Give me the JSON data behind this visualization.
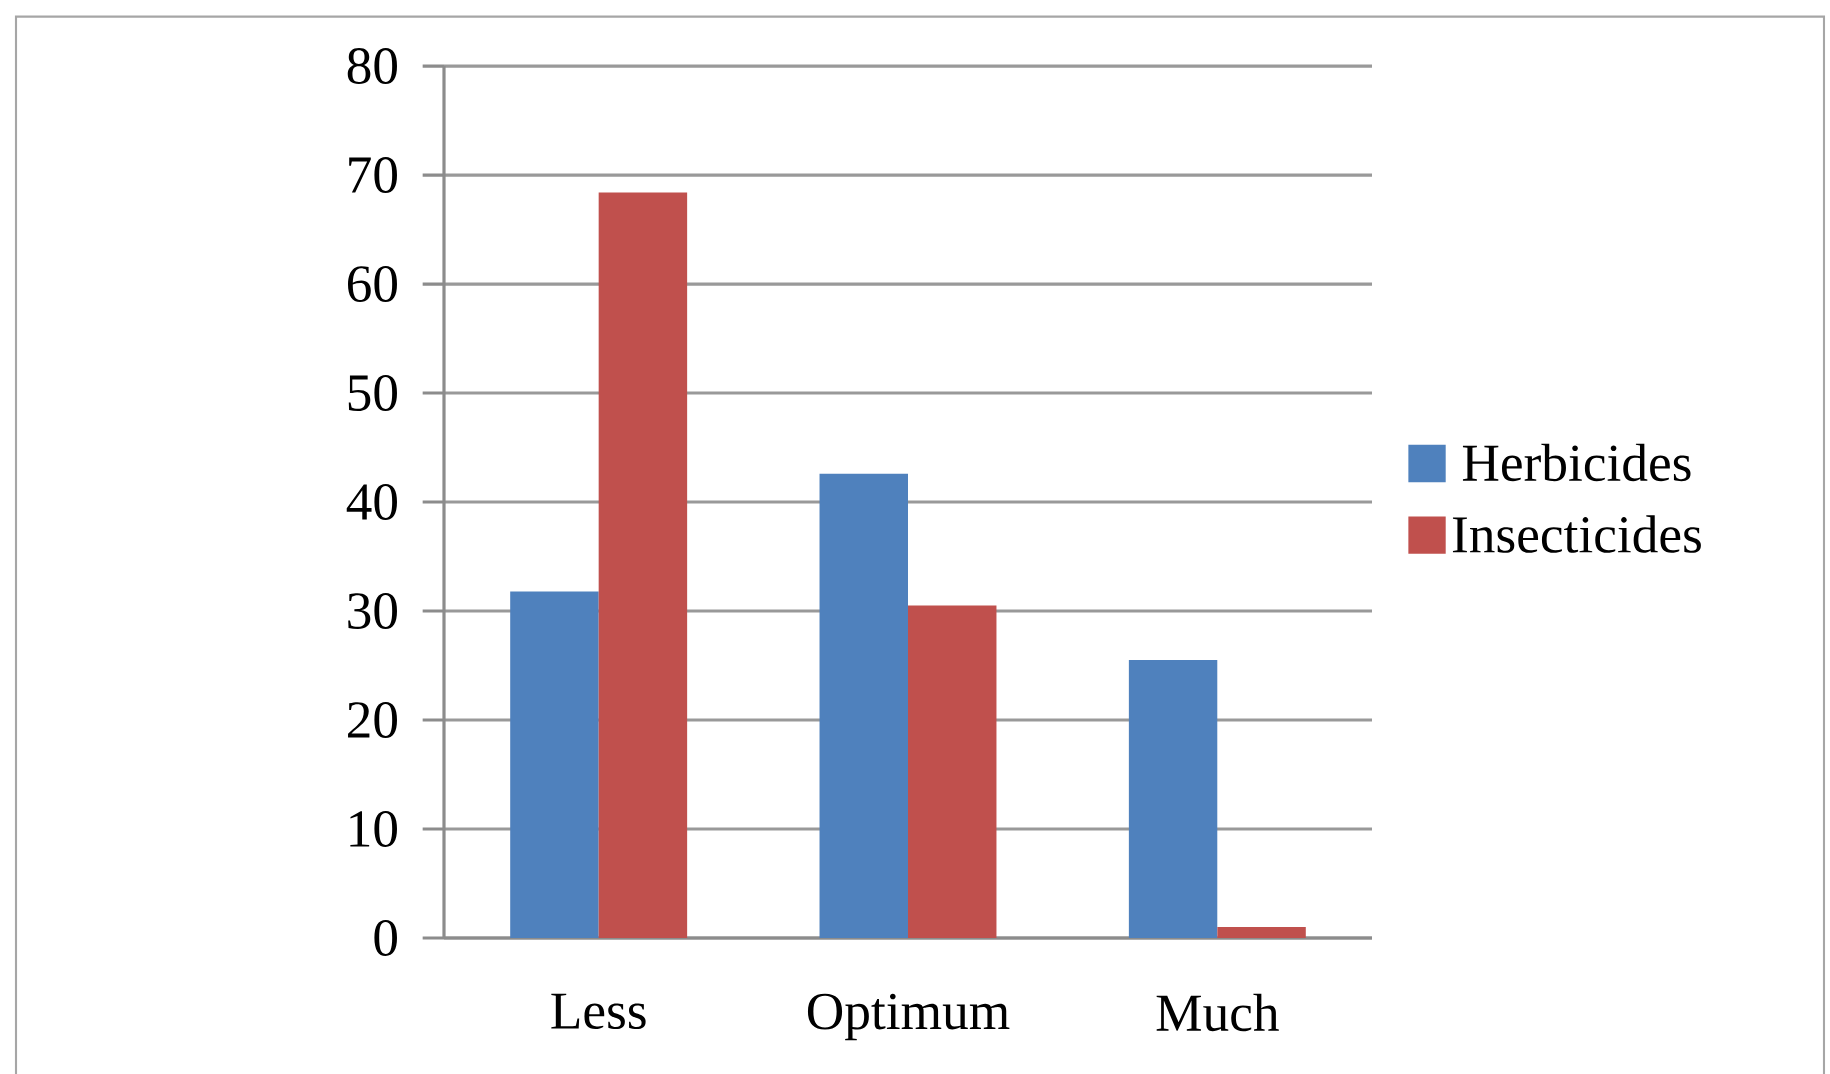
{
  "chart_data": {
    "type": "bar",
    "categories": [
      "Less",
      "Optimum",
      "Much"
    ],
    "series": [
      {
        "name": "Herbicides",
        "color": "#4f81bd",
        "values": [
          31.8,
          42.6,
          25.5
        ]
      },
      {
        "name": "Insecticides",
        "color": "#c0504d",
        "values": [
          68.4,
          30.5,
          1.0
        ]
      }
    ],
    "ylim": [
      0,
      80
    ],
    "yticks": [
      0,
      10,
      20,
      30,
      40,
      50,
      60,
      70,
      80
    ],
    "grid": "y",
    "legend": "right"
  }
}
